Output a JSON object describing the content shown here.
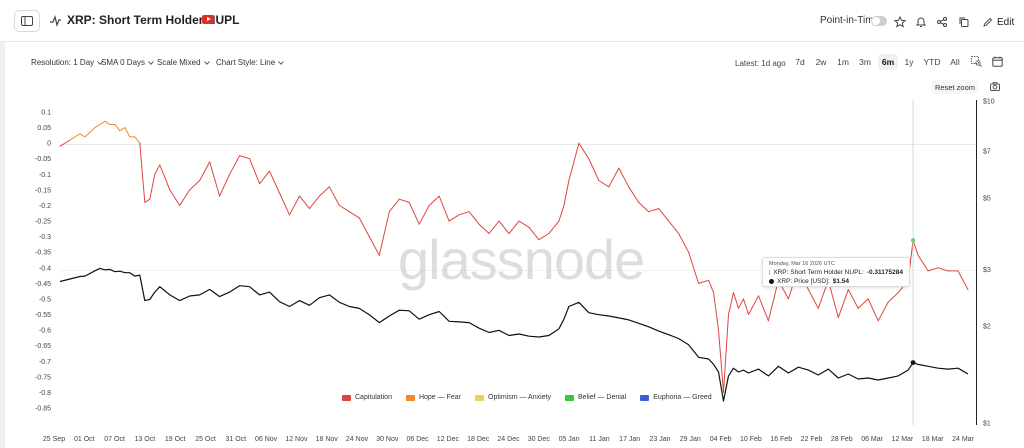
{
  "header": {
    "title": "XRP: Short Term Holder NUPL",
    "point_in_time_label": "Point-in-Time",
    "edit_label": "Edit"
  },
  "toolbar": {
    "resolution": "Resolution: 1 Day",
    "sma": "SMA 0 Days",
    "scale": "Scale Mixed",
    "chart_style": "Chart Style: Line",
    "latest": "Latest: 1d ago",
    "ranges": [
      "7d",
      "2w",
      "1m",
      "3m",
      "6m",
      "1y",
      "YTD",
      "All"
    ],
    "active_range": "6m",
    "reset_zoom": "Reset zoom"
  },
  "tooltip": {
    "date": "Monday, Mar 16 2026 UTC",
    "nupl_label": "XRP: Short Term Holder NUPL:",
    "nupl_value": "-0.31175284",
    "price_label": "XRP: Price [USD]:",
    "price_value": "$1.54"
  },
  "legend": [
    {
      "name": "Capitulation",
      "color": "#e0443f"
    },
    {
      "name": "Hope — Fear",
      "color": "#f08a2c"
    },
    {
      "name": "Optimism — Anxiety",
      "color": "#e8d44d"
    },
    {
      "name": "Belief — Denial",
      "color": "#3cc43c"
    },
    {
      "name": "Euphoria — Greed",
      "color": "#3d5fd6"
    }
  ],
  "watermark": "glassnode",
  "chart_data": {
    "type": "line",
    "x_tick_labels": [
      "25 Sep",
      "01 Oct",
      "07 Oct",
      "13 Oct",
      "19 Oct",
      "25 Oct",
      "31 Oct",
      "06 Nov",
      "12 Nov",
      "18 Nov",
      "24 Nov",
      "30 Nov",
      "06 Dec",
      "12 Dec",
      "18 Dec",
      "24 Dec",
      "30 Dec",
      "05 Jan",
      "11 Jan",
      "17 Jan",
      "23 Jan",
      "29 Jan",
      "04 Feb",
      "10 Feb",
      "16 Feb",
      "22 Feb",
      "28 Feb",
      "06 Mar",
      "12 Mar",
      "18 Mar",
      "24 Mar"
    ],
    "y_left": {
      "ticks": [
        0.1,
        0.05,
        0,
        -0.05,
        -0.1,
        -0.15,
        -0.2,
        -0.25,
        -0.3,
        -0.35,
        -0.4,
        -0.45,
        -0.5,
        -0.55,
        -0.6,
        -0.65,
        -0.7,
        -0.75,
        -0.8,
        -0.85
      ],
      "tick_labels": [
        "0.1",
        "0.05",
        "0",
        "-0.05",
        "-0.1",
        "-0.15",
        "-0.2",
        "-0.25",
        "-0.3",
        "-0.35",
        "-0.4",
        "-0.45",
        "-0.5",
        "-0.55",
        "-0.6",
        "-0.65",
        "-0.7",
        "-0.75",
        "-0.8",
        "-0.85"
      ],
      "range": [
        -0.85,
        0.12
      ]
    },
    "y_right": {
      "scale": "log",
      "ticks": [
        10,
        7,
        5,
        3,
        2,
        1
      ],
      "tick_labels": [
        "$10",
        "$7",
        "$5",
        "$3",
        "$2",
        "$1"
      ],
      "range": [
        1,
        10
      ]
    },
    "nupl_series": {
      "name": "XRP: Short Term Holder NUPL",
      "color_above_zero": "#f08a2c",
      "color_below_zero": "#e0443f",
      "day_index": [
        0,
        2,
        4,
        5,
        7,
        8,
        9,
        10,
        11,
        12,
        13,
        14,
        15,
        16,
        17,
        18,
        19,
        20,
        22,
        24,
        26,
        28,
        30,
        32,
        34,
        36,
        38,
        40,
        42,
        44,
        46,
        48,
        50,
        52,
        54,
        56,
        58,
        60,
        62,
        64,
        66,
        68,
        70,
        72,
        74,
        76,
        78,
        80,
        82,
        84,
        86,
        88,
        90,
        92,
        94,
        96,
        98,
        100,
        101,
        102,
        104,
        106,
        108,
        110,
        112,
        114,
        116,
        118,
        120,
        122,
        124,
        126,
        128,
        130,
        131,
        132,
        133,
        134,
        135,
        136,
        137,
        138,
        140,
        142,
        144,
        146,
        148,
        150,
        152,
        154,
        156,
        158,
        160,
        162,
        164,
        166,
        168,
        170,
        171,
        172,
        174,
        176,
        178,
        180,
        182
      ],
      "values": [
        -0.01,
        0.01,
        0.03,
        0.02,
        0.05,
        0.06,
        0.07,
        0.06,
        0.06,
        0.04,
        0.05,
        0.02,
        0.02,
        0.0,
        -0.19,
        -0.18,
        -0.1,
        -0.07,
        -0.15,
        -0.2,
        -0.15,
        -0.12,
        -0.06,
        -0.17,
        -0.1,
        -0.04,
        -0.05,
        -0.13,
        -0.09,
        -0.16,
        -0.23,
        -0.17,
        -0.21,
        -0.17,
        -0.14,
        -0.2,
        -0.22,
        -0.24,
        -0.3,
        -0.36,
        -0.22,
        -0.18,
        -0.19,
        -0.26,
        -0.2,
        -0.17,
        -0.25,
        -0.23,
        -0.22,
        -0.26,
        -0.29,
        -0.25,
        -0.29,
        -0.25,
        -0.27,
        -0.31,
        -0.29,
        -0.25,
        -0.2,
        -0.12,
        0.0,
        -0.05,
        -0.12,
        -0.14,
        -0.08,
        -0.14,
        -0.19,
        -0.22,
        -0.21,
        -0.25,
        -0.29,
        -0.35,
        -0.45,
        -0.44,
        -0.48,
        -0.6,
        -0.8,
        -0.55,
        -0.48,
        -0.53,
        -0.5,
        -0.55,
        -0.49,
        -0.57,
        -0.44,
        -0.5,
        -0.4,
        -0.47,
        -0.53,
        -0.44,
        -0.56,
        -0.47,
        -0.53,
        -0.5,
        -0.57,
        -0.51,
        -0.48,
        -0.44,
        -0.3117528,
        -0.36,
        -0.41,
        -0.4,
        -0.41,
        -0.41,
        -0.47
      ]
    },
    "price_series": {
      "name": "XRP: Price [USD]",
      "color": "#111111",
      "day_index": [
        0,
        2,
        4,
        5,
        7,
        8,
        9,
        10,
        11,
        12,
        13,
        14,
        15,
        16,
        17,
        18,
        19,
        20,
        22,
        24,
        26,
        28,
        30,
        32,
        34,
        36,
        38,
        40,
        42,
        44,
        46,
        48,
        50,
        52,
        54,
        56,
        58,
        60,
        62,
        64,
        66,
        68,
        70,
        72,
        74,
        76,
        78,
        80,
        82,
        84,
        86,
        88,
        90,
        92,
        94,
        96,
        98,
        100,
        101,
        102,
        104,
        106,
        108,
        110,
        112,
        114,
        116,
        118,
        120,
        122,
        124,
        126,
        128,
        130,
        131,
        132,
        133,
        134,
        135,
        136,
        137,
        138,
        140,
        142,
        144,
        146,
        148,
        150,
        152,
        154,
        156,
        158,
        160,
        162,
        164,
        166,
        168,
        170,
        171,
        172,
        174,
        176,
        178,
        180,
        182
      ],
      "values": [
        2.75,
        2.8,
        2.85,
        2.86,
        2.97,
        3.02,
        2.99,
        3.0,
        2.95,
        2.96,
        2.93,
        2.93,
        2.86,
        2.88,
        2.4,
        2.42,
        2.55,
        2.65,
        2.5,
        2.4,
        2.48,
        2.5,
        2.6,
        2.47,
        2.55,
        2.67,
        2.65,
        2.5,
        2.55,
        2.38,
        2.3,
        2.4,
        2.32,
        2.45,
        2.5,
        2.37,
        2.3,
        2.27,
        2.17,
        2.05,
        2.15,
        2.24,
        2.23,
        2.1,
        2.17,
        2.22,
        2.07,
        2.06,
        2.05,
        1.97,
        1.91,
        1.94,
        1.87,
        1.89,
        1.86,
        1.85,
        1.87,
        1.96,
        2.1,
        2.3,
        2.37,
        2.2,
        2.17,
        2.15,
        2.12,
        2.09,
        2.04,
        1.99,
        1.93,
        1.88,
        1.83,
        1.75,
        1.6,
        1.58,
        1.52,
        1.44,
        1.17,
        1.4,
        1.48,
        1.44,
        1.46,
        1.43,
        1.47,
        1.4,
        1.5,
        1.43,
        1.49,
        1.46,
        1.41,
        1.47,
        1.38,
        1.42,
        1.37,
        1.38,
        1.36,
        1.38,
        1.4,
        1.46,
        1.54,
        1.52,
        1.5,
        1.48,
        1.47,
        1.48,
        1.42
      ]
    },
    "crosshair_day_index": 171,
    "legend_placement": "bottom-center",
    "grid": false
  }
}
